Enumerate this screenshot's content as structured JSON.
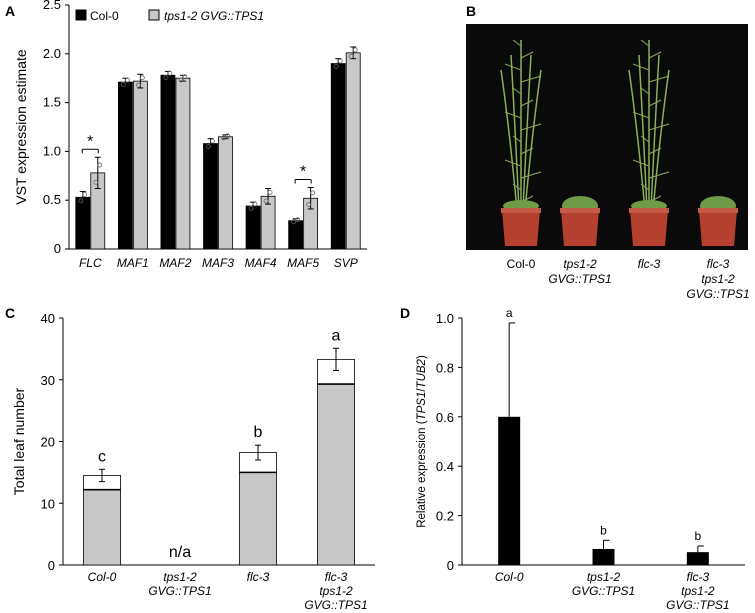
{
  "panels": {
    "A": "A",
    "B": "B",
    "C": "C",
    "D": "D"
  },
  "colors": {
    "col0": "#000000",
    "line": "#c8c8c8",
    "stacked_gray": "#c8c8c8",
    "photo_bg": "#0a0a0a",
    "plant_green": "#8ab05a",
    "pot_red": "#b5402f"
  },
  "panel_b": {
    "labels": [
      {
        "lines": [
          "Col-0"
        ],
        "italic": false
      },
      {
        "lines": [
          "tps1-2",
          "GVG::TPS1"
        ],
        "italic": true
      },
      {
        "lines": [
          "flc-3"
        ],
        "italic": true
      },
      {
        "lines": [
          "flc-3",
          "tps1-2",
          "GVG::TPS1"
        ],
        "italic": true
      }
    ]
  },
  "chart_data": [
    {
      "panel": "A",
      "type": "bar",
      "ylabel": "VST expression estimate",
      "ylim": [
        0,
        2.5
      ],
      "yticks": [
        "0",
        "0.5",
        "1.0",
        "1.5",
        "2.0",
        "2.5"
      ],
      "categories": [
        "FLC",
        "MAF1",
        "MAF2",
        "MAF3",
        "MAF4",
        "MAF5",
        "SVP"
      ],
      "series": [
        {
          "name": "Col-0",
          "color": "#000000",
          "values": [
            0.53,
            1.71,
            1.78,
            1.08,
            0.44,
            0.29,
            1.9
          ],
          "errors": [
            0.06,
            0.04,
            0.04,
            0.05,
            0.04,
            0.02,
            0.05
          ]
        },
        {
          "name": "tps1-2 GVG::TPS1",
          "color": "#c8c8c8",
          "values": [
            0.78,
            1.72,
            1.75,
            1.15,
            0.54,
            0.52,
            2.01
          ],
          "errors": [
            0.16,
            0.07,
            0.03,
            0.02,
            0.08,
            0.11,
            0.06
          ]
        }
      ],
      "annotations": [
        {
          "category": "FLC",
          "text": "*"
        },
        {
          "category": "MAF5",
          "text": "*"
        }
      ],
      "legend": "top-left"
    },
    {
      "panel": "C",
      "type": "bar",
      "ylabel": "Total leaf number",
      "ylim": [
        0,
        40
      ],
      "yticks": [
        "0",
        "10",
        "20",
        "30",
        "40"
      ],
      "categories": [
        {
          "lines": [
            "Col-0"
          ],
          "italic": false
        },
        {
          "lines": [
            "tps1-2",
            "GVG::TPS1"
          ],
          "italic": true
        },
        {
          "lines": [
            "flc-3"
          ],
          "italic": true
        },
        {
          "lines": [
            "flc-3",
            "tps1-2",
            "GVG::TPS1"
          ],
          "italic": true
        }
      ],
      "series": [
        {
          "name": "",
          "stack": "lower",
          "color": "#c8c8c8",
          "values": [
            12.2,
            null,
            15.0,
            29.3
          ]
        },
        {
          "name": "",
          "stack": "upper",
          "color": "#ffffff",
          "values": [
            2.3,
            null,
            3.2,
            4.0
          ]
        }
      ],
      "errors": [
        1.0,
        null,
        1.2,
        1.8
      ],
      "letters": [
        "c",
        "n/a",
        "b",
        "a"
      ]
    },
    {
      "panel": "D",
      "type": "bar",
      "ylabel": "Relative expression (TPS1/TUB2)",
      "ylabel_parts": [
        "Relative expression (",
        "TPS1",
        "/",
        "TUB2",
        ")"
      ],
      "ylim": [
        0,
        1.0
      ],
      "yticks": [
        "0",
        "0.2",
        "0.4",
        "0.6",
        "0.8",
        "1.0"
      ],
      "categories": [
        {
          "lines": [
            "Col-0"
          ],
          "italic": false
        },
        {
          "lines": [
            "tps1-2",
            "GVG::TPS1"
          ],
          "italic": true
        },
        {
          "lines": [
            "flc-3",
            "tps1-2",
            "GVG::TPS1"
          ],
          "italic": true
        }
      ],
      "values": [
        0.6,
        0.065,
        0.052
      ],
      "errors": [
        0.38,
        0.035,
        0.025
      ],
      "letters": [
        "a",
        "b",
        "b"
      ]
    }
  ]
}
